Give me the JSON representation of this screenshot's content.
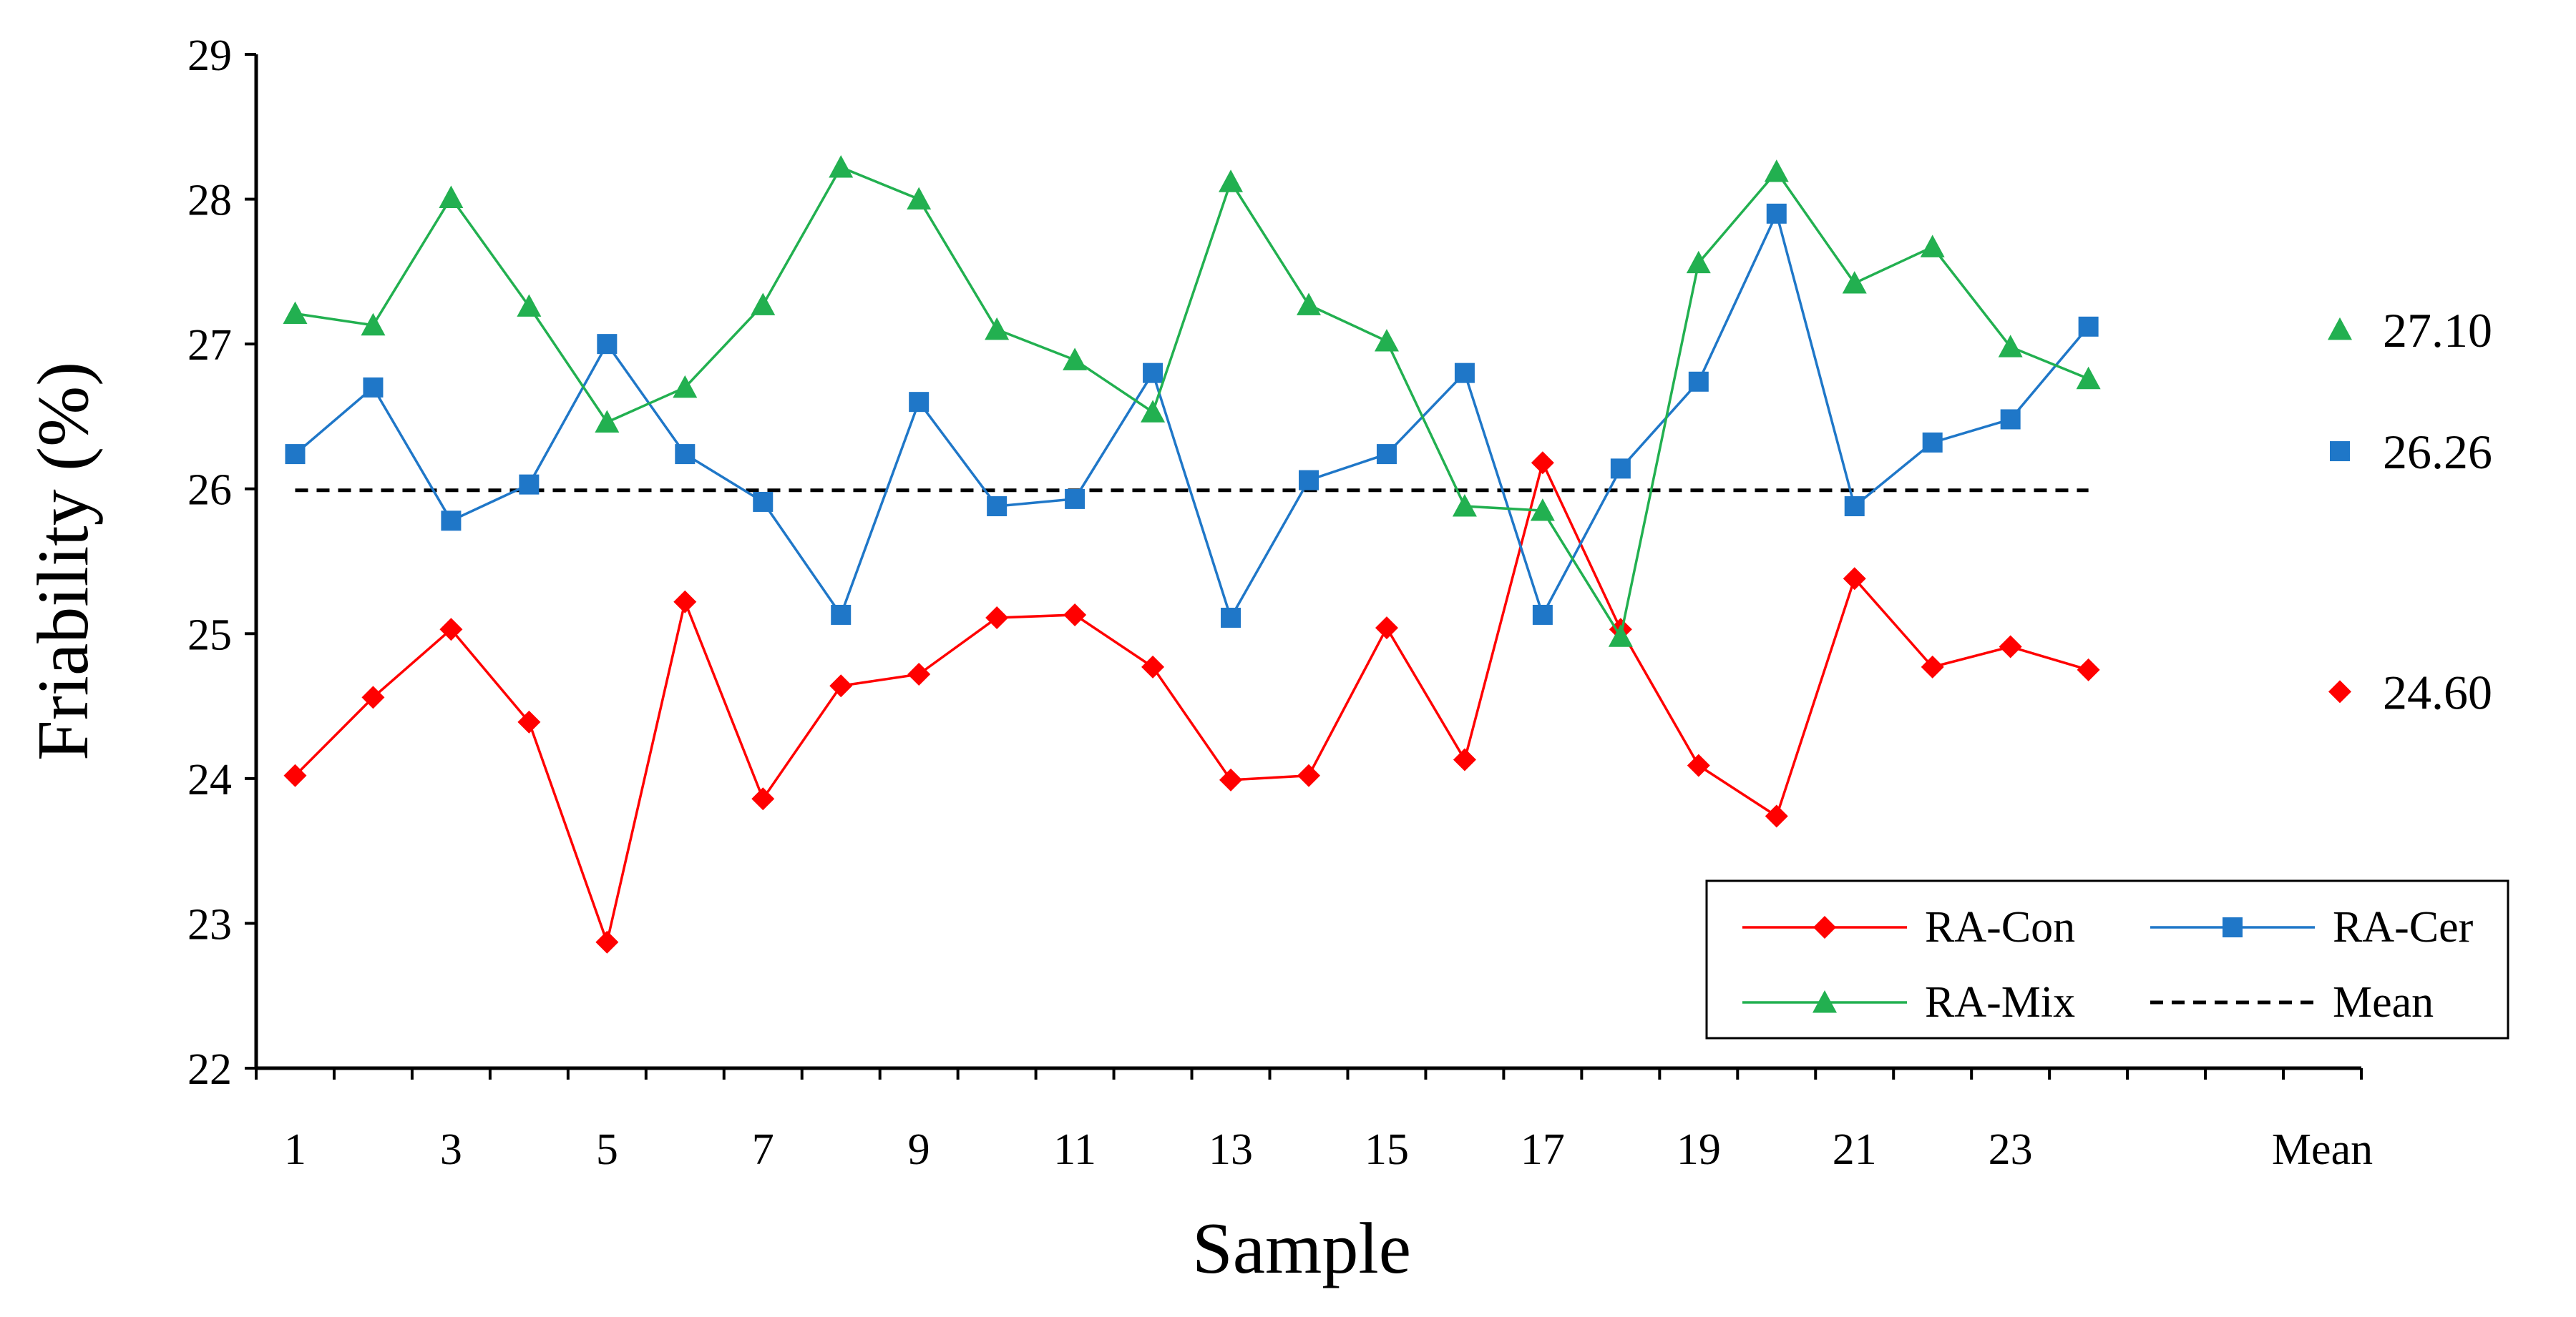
{
  "chart_data": {
    "type": "line",
    "title": "",
    "xlabel": "Sample",
    "ylabel": "Friability (%)",
    "ylim": [
      22,
      29
    ],
    "yticks": [
      22,
      23,
      24,
      25,
      26,
      27,
      28,
      29
    ],
    "x": [
      1,
      2,
      3,
      4,
      5,
      6,
      7,
      8,
      9,
      10,
      11,
      12,
      13,
      14,
      15,
      16,
      17,
      18,
      19,
      20,
      21,
      22,
      23,
      24
    ],
    "xtick_labels": [
      "1",
      "3",
      "5",
      "7",
      "9",
      "11",
      "13",
      "15",
      "17",
      "19",
      "21",
      "23",
      "Mean"
    ],
    "xtick_values": [
      1,
      3,
      5,
      7,
      9,
      11,
      13,
      15,
      17,
      19,
      21,
      23,
      27
    ],
    "x_categories_total": 27,
    "series": [
      {
        "name": "RA-Con",
        "color": "#ff0000",
        "marker": "diamond",
        "values": [
          24.02,
          24.56,
          25.03,
          24.39,
          22.87,
          25.22,
          23.86,
          24.64,
          24.72,
          25.11,
          25.13,
          24.77,
          23.99,
          24.02,
          25.04,
          24.13,
          26.18,
          25.03,
          24.09,
          23.74,
          25.38,
          24.77,
          24.91,
          24.75
        ],
        "mean": 24.6,
        "mean_label": "24.60"
      },
      {
        "name": "RA-Cer",
        "color": "#1f77c8",
        "marker": "square",
        "values": [
          26.24,
          26.7,
          25.78,
          26.03,
          27.0,
          26.24,
          25.91,
          25.13,
          26.6,
          25.88,
          25.93,
          26.8,
          25.11,
          26.06,
          26.24,
          26.8,
          25.13,
          26.14,
          26.74,
          27.9,
          25.88,
          26.32,
          26.48,
          27.12
        ],
        "mean": 26.26,
        "mean_label": "26.26"
      },
      {
        "name": "RA-Mix",
        "color": "#22b050",
        "marker": "triangle",
        "values": [
          27.21,
          27.13,
          28.01,
          27.26,
          26.46,
          26.7,
          27.27,
          28.22,
          28.0,
          27.1,
          26.89,
          26.53,
          28.12,
          27.27,
          27.02,
          25.88,
          25.85,
          24.98,
          27.56,
          28.19,
          27.42,
          27.67,
          26.98,
          26.76
        ],
        "mean": 27.1,
        "mean_label": "27.10"
      }
    ],
    "overall_mean": {
      "name": "Mean",
      "value": 25.99,
      "style": "dashed",
      "color": "#000000"
    },
    "legend": {
      "position": "bottom-right",
      "entries": [
        "RA-Con",
        "RA-Cer",
        "RA-Mix",
        "Mean"
      ]
    },
    "grid": false
  }
}
